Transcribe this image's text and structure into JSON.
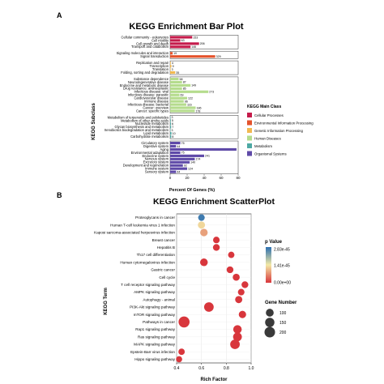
{
  "panels": {
    "a_label": "A",
    "b_label": "B"
  },
  "chart_data": [
    {
      "type": "bar",
      "orientation": "horizontal",
      "title": "KEGG Enrichment Bar Plot",
      "xlabel": "Percent Of Genes (%)",
      "ylabel": "KEGG Subclass",
      "xlim": [
        0,
        80
      ],
      "xticks": [
        0,
        20,
        40,
        60,
        80
      ],
      "legend": {
        "title": "KEGG Main Class",
        "placement": "right",
        "entries": [
          {
            "name": "Cellular Processes",
            "color": "#c51b4b"
          },
          {
            "name": "Environmental Information Processing",
            "color": "#e4532c"
          },
          {
            "name": "Genetic Information Processing",
            "color": "#f2b950"
          },
          {
            "name": "Human Diseases",
            "color": "#b5dc8d"
          },
          {
            "name": "Metabolism",
            "color": "#4da9a4"
          },
          {
            "name": "Organismal Systems",
            "color": "#5f4aa8"
          }
        ]
      },
      "groups": [
        {
          "class": "Cellular Processes",
          "items": [
            {
              "label": "Cellular community - eukaryotes",
              "value": 26,
              "count": "153"
            },
            {
              "label": "Cell motility",
              "value": 12,
              "count": "63"
            },
            {
              "label": "Cell growth and death",
              "value": 34,
              "count": "206"
            },
            {
              "label": "Transport and catabolism",
              "value": 24,
              "count": "146"
            }
          ]
        },
        {
          "class": "Environmental Information Processing",
          "items": [
            {
              "label": "Signaling molecules and interaction",
              "value": 3,
              "count": "19"
            },
            {
              "label": "Signal transduction",
              "value": 53,
              "count": "329"
            }
          ]
        },
        {
          "class": "Genetic Information Processing",
          "items": [
            {
              "label": "Replication and repair",
              "value": 0.8,
              "count": "4"
            },
            {
              "label": "Transcription",
              "value": 1.5,
              "count": "9"
            },
            {
              "label": "Translation",
              "value": 0.6,
              "count": "3"
            },
            {
              "label": "Folding, sorting and degradation",
              "value": 6,
              "count": "35"
            }
          ]
        },
        {
          "class": "Human Diseases",
          "items": [
            {
              "label": "Substance dependence",
              "value": 10,
              "count": "58"
            },
            {
              "label": "Neurodegenerative disease",
              "value": 14,
              "count": "87"
            },
            {
              "label": "Endocrine and metabolic disease",
              "value": 24,
              "count": "149"
            },
            {
              "label": "Drug resistance: antineoplastic",
              "value": 14,
              "count": "85"
            },
            {
              "label": "Infectious disease: viral",
              "value": 45,
              "count": "273"
            },
            {
              "label": "Infectious disease: parasitic",
              "value": 11,
              "count": "69"
            },
            {
              "label": "Cardiovascular disease",
              "value": 20,
              "count": "122"
            },
            {
              "label": "Immune disease",
              "value": 16,
              "count": "96"
            },
            {
              "label": "Infectious disease: bacterial",
              "value": 19,
              "count": "116"
            },
            {
              "label": "Cancer: overview",
              "value": 30,
              "count": "186"
            },
            {
              "label": "Cancer: specific types",
              "value": 29,
              "count": "178"
            }
          ]
        },
        {
          "class": "Metabolism",
          "items": [
            {
              "label": "Metabolism of terpenoids and polyketides",
              "value": 0.5,
              "count": "3"
            },
            {
              "label": "Metabolism of other amino acids",
              "value": 0.8,
              "count": "5"
            },
            {
              "label": "Nucleotide metabolism",
              "value": 1.0,
              "count": "6"
            },
            {
              "label": "Glycan biosynthesis and metabolism",
              "value": 1.2,
              "count": "7"
            },
            {
              "label": "Xenobiotics biodegradation and metabolism",
              "value": 0.5,
              "count": "3"
            },
            {
              "label": "Lipid metabolism",
              "value": 1.6,
              "count": "10"
            },
            {
              "label": "Carbohydrate metabolism",
              "value": 1.3,
              "count": "8"
            }
          ]
        },
        {
          "class": "Organismal Systems",
          "items": [
            {
              "label": "Circulatory system",
              "value": 12,
              "count": "75"
            },
            {
              "label": "Digestive system",
              "value": 7,
              "count": "44"
            },
            {
              "label": "Aging",
              "value": 78,
              "count": ""
            },
            {
              "label": "Environmental adaptation",
              "value": 12,
              "count": "75"
            },
            {
              "label": "Endocrine system",
              "value": 40,
              "count": "241"
            },
            {
              "label": "Nervous system",
              "value": 29,
              "count": "174"
            },
            {
              "label": "Excretory system",
              "value": 23,
              "count": "140"
            },
            {
              "label": "Development and regeneration",
              "value": 15,
              "count": "92"
            },
            {
              "label": "Immune system",
              "value": 20,
              "count": "124"
            },
            {
              "label": "Sensory system",
              "value": 7,
              "count": "44"
            }
          ]
        }
      ]
    },
    {
      "type": "scatter",
      "title": "KEGG Enrichment ScatterPlot",
      "xlabel": "Rich Factor",
      "ylabel": "KEGG Term",
      "xlim": [
        0.4,
        1.0
      ],
      "xticks": [
        "0.4",
        "0.6",
        "0.8",
        "1.0"
      ],
      "color_legend": {
        "title": "p Value",
        "labels": [
          "2.83e-45",
          "1.41e-45",
          "0.00e+00"
        ],
        "colors": [
          "#2b6fb0",
          "#f3e9a6",
          "#d8363c"
        ]
      },
      "size_legend": {
        "title": "Gene Number",
        "labels": [
          "100",
          "150",
          "200"
        ],
        "values": [
          100,
          150,
          200
        ]
      },
      "points": [
        {
          "term": "Proteoglycans in cancer",
          "x": 0.6,
          "genes": 65,
          "p_scaled": 0.95
        },
        {
          "term": "Human T-cell leukemia virus 1 infection",
          "x": 0.6,
          "genes": 80,
          "p_scaled": 0.45
        },
        {
          "term": "Kaposi sarcoma-associated herpesvirus infection",
          "x": 0.62,
          "genes": 90,
          "p_scaled": 0.3
        },
        {
          "term": "Breast cancer",
          "x": 0.72,
          "genes": 65,
          "p_scaled": 0.0
        },
        {
          "term": "Hepatitis B",
          "x": 0.72,
          "genes": 70,
          "p_scaled": 0.0
        },
        {
          "term": "Th17 cell differentiation",
          "x": 0.84,
          "genes": 60,
          "p_scaled": 0.0
        },
        {
          "term": "Human cytomegalovirus infection",
          "x": 0.62,
          "genes": 95,
          "p_scaled": 0.0
        },
        {
          "term": "Gastric cancer",
          "x": 0.83,
          "genes": 70,
          "p_scaled": 0.0
        },
        {
          "term": "Cell cycle",
          "x": 0.88,
          "genes": 75,
          "p_scaled": 0.0
        },
        {
          "term": "T cell receptor signaling pathway",
          "x": 0.95,
          "genes": 70,
          "p_scaled": 0.0
        },
        {
          "term": "AMPK signaling pathway",
          "x": 0.92,
          "genes": 65,
          "p_scaled": 0.0
        },
        {
          "term": "Autophagy - animal",
          "x": 0.9,
          "genes": 80,
          "p_scaled": 0.0
        },
        {
          "term": "PI3K-Akt signaling pathway",
          "x": 0.66,
          "genes": 160,
          "p_scaled": 0.0
        },
        {
          "term": "mTOR signaling pathway",
          "x": 0.93,
          "genes": 85,
          "p_scaled": 0.0
        },
        {
          "term": "Pathways in cancer",
          "x": 0.46,
          "genes": 220,
          "p_scaled": 0.0
        },
        {
          "term": "Rap1 signaling pathway",
          "x": 0.89,
          "genes": 120,
          "p_scaled": 0.0
        },
        {
          "term": "Ras signaling pathway",
          "x": 0.89,
          "genes": 130,
          "p_scaled": 0.0
        },
        {
          "term": "MAPK signaling pathway",
          "x": 0.87,
          "genes": 160,
          "p_scaled": 0.0
        },
        {
          "term": "Epstein-Barr virus infection",
          "x": 0.44,
          "genes": 60,
          "p_scaled": 0.0
        },
        {
          "term": "Hippo signaling pathway",
          "x": 0.42,
          "genes": 55,
          "p_scaled": 0.0
        }
      ]
    }
  ]
}
